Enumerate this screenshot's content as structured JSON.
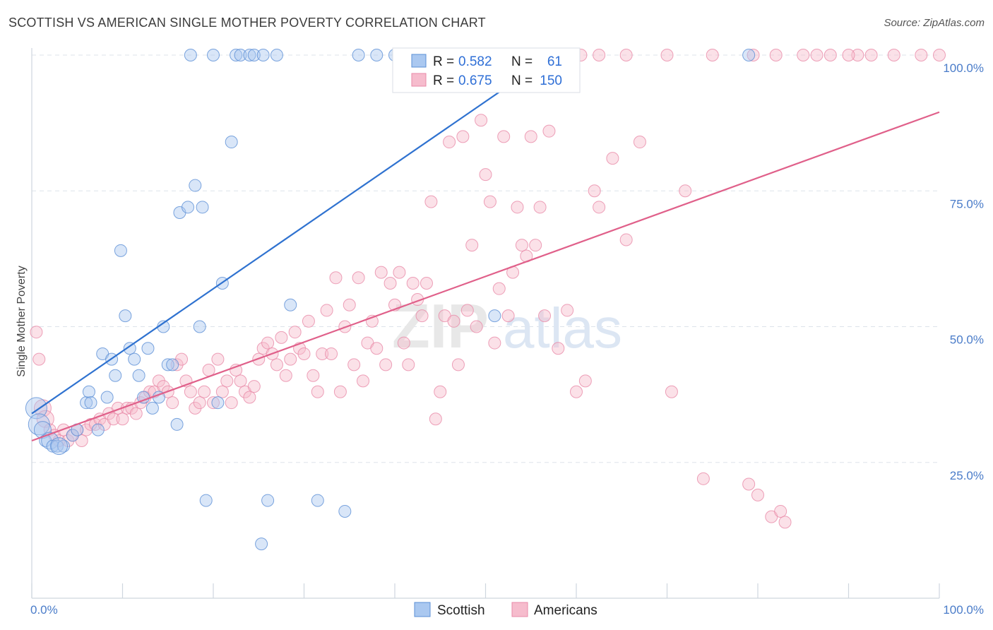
{
  "title": "SCOTTISH VS AMERICAN SINGLE MOTHER POVERTY CORRELATION CHART",
  "source": "Source: ZipAtlas.com",
  "watermark": {
    "part1": "ZIP",
    "part2": "atlas"
  },
  "colors": {
    "scottish_fill": "#aac8f0",
    "scottish_stroke": "#5b8fd6",
    "scottish_line": "#2f72d0",
    "americans_fill": "#f6bccd",
    "americans_stroke": "#e88aa8",
    "americans_line": "#e0608a",
    "grid": "#dde3ea",
    "tick_text": "#4a7cc9"
  },
  "legend": {
    "r_label": "R =",
    "n_label": "N =",
    "rows": [
      {
        "series": "Scottish",
        "r": "0.582",
        "n": "61"
      },
      {
        "series": "Americans",
        "r": "0.675",
        "n": "150"
      }
    ]
  },
  "bottom_legend": [
    "Scottish",
    "Americans"
  ],
  "chart_data": {
    "type": "scatter",
    "xlabel": "",
    "ylabel": "Single Mother Poverty",
    "xlim": [
      0,
      100
    ],
    "ylim": [
      0,
      100
    ],
    "x_tick_labels": [
      "0.0%",
      "100.0%"
    ],
    "y_tick_labels": [
      "25.0%",
      "50.0%",
      "75.0%",
      "100.0%"
    ],
    "y_ticks": [
      25,
      50,
      75,
      100
    ],
    "grid": true,
    "legend_position": "top-center",
    "series": [
      {
        "name": "Scottish",
        "trend": [
          [
            0.0,
            34
          ],
          [
            57.0,
            99.5
          ]
        ],
        "points": [
          [
            0.5,
            35,
            3
          ],
          [
            0.8,
            32,
            3
          ],
          [
            1.2,
            31,
            2
          ],
          [
            1.5,
            29,
            1
          ],
          [
            2.0,
            29,
            2
          ],
          [
            2.3,
            28,
            1
          ],
          [
            2.8,
            28,
            1
          ],
          [
            3.5,
            28,
            1
          ],
          [
            4.5,
            30,
            1
          ],
          [
            5.0,
            31,
            1
          ],
          [
            6.0,
            36,
            1
          ],
          [
            6.3,
            38,
            1
          ],
          [
            6.5,
            36,
            1
          ],
          [
            7.3,
            31,
            1
          ],
          [
            7.8,
            45,
            1
          ],
          [
            8.3,
            37,
            1
          ],
          [
            8.8,
            44,
            1
          ],
          [
            9.2,
            41,
            1
          ],
          [
            9.8,
            64,
            1
          ],
          [
            10.3,
            52,
            1
          ],
          [
            10.8,
            46,
            1
          ],
          [
            11.3,
            44,
            1
          ],
          [
            11.8,
            41,
            1
          ],
          [
            12.3,
            37,
            1
          ],
          [
            12.8,
            46,
            1
          ],
          [
            13.3,
            35,
            1
          ],
          [
            14.0,
            37,
            1
          ],
          [
            14.5,
            50,
            1
          ],
          [
            15.0,
            43,
            1
          ],
          [
            15.5,
            43,
            1
          ],
          [
            16.0,
            32,
            1
          ],
          [
            16.3,
            71,
            1
          ],
          [
            17.2,
            72,
            1
          ],
          [
            17.5,
            100,
            1
          ],
          [
            18.0,
            76,
            1
          ],
          [
            18.5,
            50,
            1
          ],
          [
            18.8,
            72,
            1
          ],
          [
            19.2,
            18,
            1
          ],
          [
            20.0,
            100,
            1
          ],
          [
            20.5,
            36,
            1
          ],
          [
            21.0,
            58,
            1
          ],
          [
            22.0,
            84,
            1
          ],
          [
            22.5,
            100,
            1
          ],
          [
            23.0,
            100,
            1
          ],
          [
            24.0,
            100,
            1
          ],
          [
            24.5,
            100,
            1
          ],
          [
            25.3,
            10,
            1
          ],
          [
            25.5,
            100,
            1
          ],
          [
            26.0,
            18,
            1
          ],
          [
            27.0,
            100,
            1
          ],
          [
            28.5,
            54,
            1
          ],
          [
            31.5,
            18,
            1
          ],
          [
            34.5,
            16,
            1
          ],
          [
            36.0,
            100,
            1
          ],
          [
            38.0,
            100,
            1
          ],
          [
            40.0,
            100,
            1
          ],
          [
            41.5,
            100,
            1
          ],
          [
            42.5,
            100,
            1
          ],
          [
            51.0,
            52,
            1
          ],
          [
            79.0,
            100,
            1
          ],
          [
            3.0,
            28,
            2
          ]
        ]
      },
      {
        "name": "Americans",
        "trend": [
          [
            0.0,
            29
          ],
          [
            100.0,
            89.5
          ]
        ],
        "points": [
          [
            0.5,
            49,
            1
          ],
          [
            0.8,
            44,
            1
          ],
          [
            1.2,
            35,
            2
          ],
          [
            1.5,
            33,
            2
          ],
          [
            2.0,
            31,
            1
          ],
          [
            2.5,
            30,
            1
          ],
          [
            3.0,
            29,
            1
          ],
          [
            3.5,
            31,
            1
          ],
          [
            4.0,
            29,
            1
          ],
          [
            4.5,
            30,
            1
          ],
          [
            5.0,
            31,
            1
          ],
          [
            5.5,
            29,
            1
          ],
          [
            6.0,
            31,
            1
          ],
          [
            6.5,
            32,
            1
          ],
          [
            7.0,
            32,
            1
          ],
          [
            7.5,
            33,
            1
          ],
          [
            8.0,
            32,
            1
          ],
          [
            8.5,
            34,
            1
          ],
          [
            9.0,
            33,
            1
          ],
          [
            9.5,
            35,
            1
          ],
          [
            10.0,
            33,
            1
          ],
          [
            10.5,
            35,
            1
          ],
          [
            11.0,
            35,
            1
          ],
          [
            11.5,
            34,
            1
          ],
          [
            12.0,
            36,
            1
          ],
          [
            12.5,
            37,
            1
          ],
          [
            13.0,
            38,
            1
          ],
          [
            13.5,
            38,
            1
          ],
          [
            14.0,
            40,
            1
          ],
          [
            14.5,
            39,
            1
          ],
          [
            15.0,
            38,
            1
          ],
          [
            15.5,
            36,
            1
          ],
          [
            16.0,
            43,
            1
          ],
          [
            16.5,
            44,
            1
          ],
          [
            17.0,
            40,
            1
          ],
          [
            17.5,
            38,
            1
          ],
          [
            18.0,
            35,
            1
          ],
          [
            18.5,
            36,
            1
          ],
          [
            19.0,
            38,
            1
          ],
          [
            19.5,
            42,
            1
          ],
          [
            20.0,
            36,
            1
          ],
          [
            20.5,
            44,
            1
          ],
          [
            21.0,
            38,
            1
          ],
          [
            21.5,
            40,
            1
          ],
          [
            22.0,
            36,
            1
          ],
          [
            22.5,
            42,
            1
          ],
          [
            23.0,
            40,
            1
          ],
          [
            23.5,
            38,
            1
          ],
          [
            24.0,
            37,
            1
          ],
          [
            24.5,
            39,
            1
          ],
          [
            25.0,
            44,
            1
          ],
          [
            25.5,
            46,
            1
          ],
          [
            26.0,
            47,
            1
          ],
          [
            26.5,
            45,
            1
          ],
          [
            27.0,
            43,
            1
          ],
          [
            27.5,
            48,
            1
          ],
          [
            28.0,
            41,
            1
          ],
          [
            28.5,
            44,
            1
          ],
          [
            29.0,
            49,
            1
          ],
          [
            29.5,
            46,
            1
          ],
          [
            30.0,
            45,
            1
          ],
          [
            30.5,
            51,
            1
          ],
          [
            31.0,
            41,
            1
          ],
          [
            31.5,
            38,
            1
          ],
          [
            32.0,
            45,
            1
          ],
          [
            32.5,
            53,
            1
          ],
          [
            33.0,
            45,
            1
          ],
          [
            33.5,
            59,
            1
          ],
          [
            34.0,
            38,
            1
          ],
          [
            34.5,
            50,
            1
          ],
          [
            35.0,
            54,
            1
          ],
          [
            35.5,
            43,
            1
          ],
          [
            36.0,
            59,
            1
          ],
          [
            36.5,
            40,
            1
          ],
          [
            37.0,
            47,
            1
          ],
          [
            37.5,
            51,
            1
          ],
          [
            38.0,
            46,
            1
          ],
          [
            38.5,
            60,
            1
          ],
          [
            39.0,
            43,
            1
          ],
          [
            39.5,
            58,
            1
          ],
          [
            40.0,
            54,
            1
          ],
          [
            40.5,
            60,
            1
          ],
          [
            41.0,
            47,
            1
          ],
          [
            41.5,
            43,
            1
          ],
          [
            42.0,
            58,
            1
          ],
          [
            42.5,
            55,
            1
          ],
          [
            43.0,
            52,
            1
          ],
          [
            43.5,
            58,
            1
          ],
          [
            44.0,
            73,
            1
          ],
          [
            44.5,
            33,
            1
          ],
          [
            45.0,
            38,
            1
          ],
          [
            45.5,
            52,
            1
          ],
          [
            46.0,
            84,
            1
          ],
          [
            46.5,
            51,
            1
          ],
          [
            47.0,
            43,
            1
          ],
          [
            47.5,
            85,
            1
          ],
          [
            48.0,
            53,
            1
          ],
          [
            48.5,
            65,
            1
          ],
          [
            49.0,
            50,
            1
          ],
          [
            49.5,
            88,
            1
          ],
          [
            50.0,
            78,
            1
          ],
          [
            50.5,
            73,
            1
          ],
          [
            51.0,
            47,
            1
          ],
          [
            51.5,
            57,
            1
          ],
          [
            52.0,
            85,
            1
          ],
          [
            52.5,
            52,
            1
          ],
          [
            53.0,
            60,
            1
          ],
          [
            53.5,
            72,
            1
          ],
          [
            54.0,
            65,
            1
          ],
          [
            54.5,
            63,
            1
          ],
          [
            55.0,
            85,
            1
          ],
          [
            55.5,
            65,
            1
          ],
          [
            56.0,
            72,
            1
          ],
          [
            56.5,
            52,
            1
          ],
          [
            57.0,
            86,
            1
          ],
          [
            58.0,
            46,
            1
          ],
          [
            59.0,
            53,
            1
          ],
          [
            60.0,
            38,
            1
          ],
          [
            61.0,
            40,
            1
          ],
          [
            62.0,
            75,
            1
          ],
          [
            62.5,
            72,
            1
          ],
          [
            64.0,
            81,
            1
          ],
          [
            65.5,
            66,
            1
          ],
          [
            67.0,
            84,
            1
          ],
          [
            70.5,
            38,
            1
          ],
          [
            72.0,
            75,
            1
          ],
          [
            74.0,
            22,
            1
          ],
          [
            79.0,
            21,
            1
          ],
          [
            80.0,
            19,
            1
          ],
          [
            81.5,
            15,
            1
          ],
          [
            82.5,
            16,
            1
          ],
          [
            83.0,
            14,
            1
          ],
          [
            85.0,
            100,
            1
          ],
          [
            86.5,
            100,
            1
          ],
          [
            88.0,
            100,
            1
          ],
          [
            91.0,
            100,
            1
          ],
          [
            92.5,
            100,
            1
          ],
          [
            95.0,
            100,
            1
          ],
          [
            98.0,
            100,
            1
          ],
          [
            100.0,
            100,
            1
          ],
          [
            55.5,
            100,
            1
          ],
          [
            57.0,
            100,
            1
          ],
          [
            60.5,
            100,
            1
          ],
          [
            62.5,
            100,
            1
          ],
          [
            65.5,
            100,
            1
          ],
          [
            70.0,
            100,
            1
          ],
          [
            75.0,
            100,
            1
          ],
          [
            79.5,
            100,
            1
          ],
          [
            82.0,
            100,
            1
          ],
          [
            90.0,
            100,
            1
          ]
        ]
      }
    ]
  }
}
